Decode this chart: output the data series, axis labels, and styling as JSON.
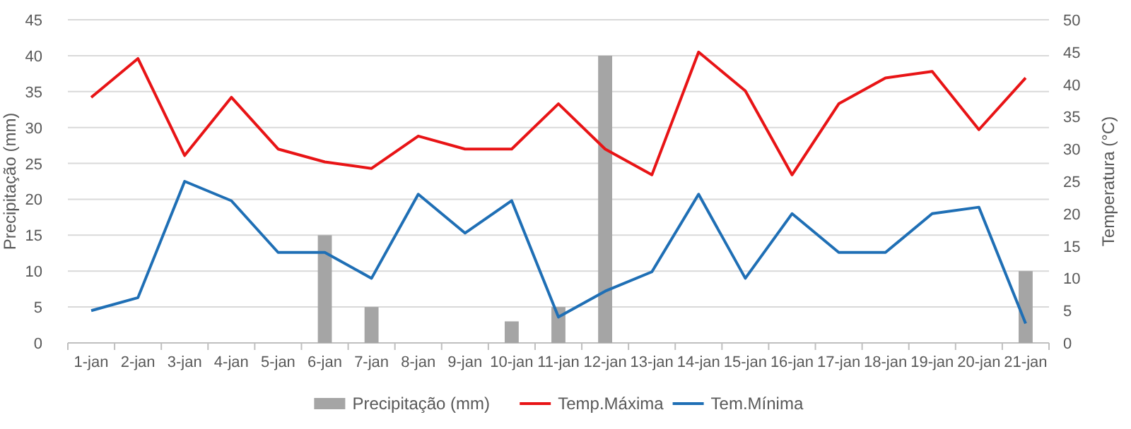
{
  "chart_data": {
    "type": "bar",
    "categories": [
      "1-jan",
      "2-jan",
      "3-jan",
      "4-jan",
      "5-jan",
      "6-jan",
      "7-jan",
      "8-jan",
      "9-jan",
      "10-jan",
      "11-jan",
      "12-jan",
      "13-jan",
      "14-jan",
      "15-jan",
      "16-jan",
      "17-jan",
      "18-jan",
      "19-jan",
      "20-jan",
      "21-jan"
    ],
    "series": [
      {
        "name": "Precipitação (mm)",
        "color": "#a5a5a5",
        "values": [
          0,
          0,
          0,
          0,
          0,
          15,
          5,
          0,
          0,
          3,
          5,
          40,
          0,
          0,
          0,
          0,
          0,
          0,
          0,
          0,
          10
        ]
      },
      {
        "name": "Temp.Máxima",
        "type": "line",
        "axis": "y2",
        "color": "#e81416",
        "values": [
          38,
          44,
          29,
          38,
          30,
          28,
          27,
          32,
          30,
          30,
          37,
          30,
          26,
          45,
          39,
          26,
          37,
          41,
          42,
          33,
          41
        ]
      },
      {
        "name": "Tem.Mínima",
        "type": "line",
        "axis": "y2",
        "color": "#1f6fb5",
        "values": [
          5,
          7,
          25,
          22,
          14,
          14,
          10,
          23,
          17,
          22,
          4,
          8,
          11,
          23,
          10,
          20,
          14,
          14,
          20,
          21,
          3
        ]
      }
    ],
    "ylabel": "Precipitação (mm)",
    "y2label": "Temperatura (°C)",
    "ylim": [
      0,
      45
    ],
    "yticks": [
      0,
      5,
      10,
      15,
      20,
      25,
      30,
      35,
      40,
      45
    ],
    "y2lim": [
      0,
      50
    ],
    "y2ticks": [
      0,
      5,
      10,
      15,
      20,
      25,
      30,
      35,
      40,
      45,
      50
    ],
    "grid": "y",
    "legend": "bottom"
  }
}
